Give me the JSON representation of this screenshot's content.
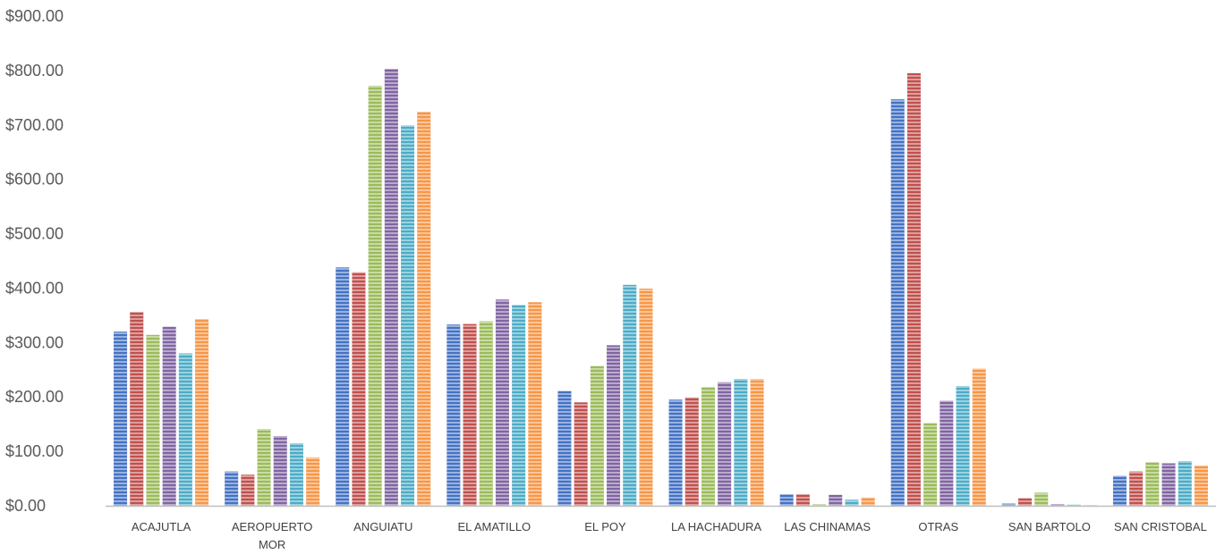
{
  "chart_data": {
    "type": "bar",
    "title": "",
    "xlabel": "",
    "ylabel": "",
    "ylim": [
      0,
      900
    ],
    "y_ticks": [
      "$0.00",
      "$100.00",
      "$200.00",
      "$300.00",
      "$400.00",
      "$500.00",
      "$600.00",
      "$700.00",
      "$800.00",
      "$900.00"
    ],
    "grid": false,
    "legend": "none",
    "categories": [
      [
        "ACAJUTLA"
      ],
      [
        "AEROPUERTO",
        "MOR"
      ],
      [
        "ANGUIATU"
      ],
      [
        "EL AMATILLO"
      ],
      [
        "EL POY"
      ],
      [
        "LA HACHADURA"
      ],
      [
        "LAS CHINAMAS"
      ],
      [
        "OTRAS"
      ],
      [
        "SAN BARTOLO"
      ],
      [
        "SAN CRISTOBAL"
      ]
    ],
    "series": [
      {
        "color": "#4472C4",
        "values": [
          320,
          63,
          438,
          333,
          211,
          195,
          21,
          747,
          4,
          55
        ]
      },
      {
        "color": "#C0504D",
        "values": [
          356,
          57,
          429,
          334,
          190,
          199,
          21,
          795,
          14,
          63
        ]
      },
      {
        "color": "#9BBB59",
        "values": [
          314,
          141,
          772,
          339,
          257,
          218,
          3,
          152,
          24,
          80
        ]
      },
      {
        "color": "#8064A2",
        "values": [
          329,
          128,
          803,
          379,
          295,
          227,
          20,
          193,
          3,
          78
        ]
      },
      {
        "color": "#4BACC6",
        "values": [
          280,
          115,
          699,
          369,
          406,
          233,
          11,
          220,
          2,
          82
        ]
      },
      {
        "color": "#F79646",
        "values": [
          343,
          89,
          724,
          374,
          399,
          233,
          15,
          252,
          1,
          74
        ]
      }
    ]
  }
}
